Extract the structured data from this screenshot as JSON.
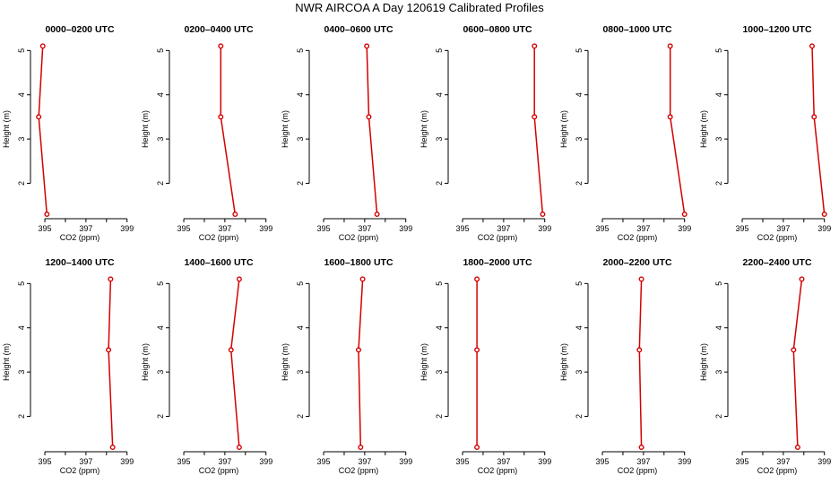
{
  "title": "NWR AIRCOA A  Day 120619  Calibrated Profiles",
  "chart_data": {
    "type": "line",
    "xlabel": "CO2 (ppm)",
    "ylabel": "Height (m)",
    "xlim": [
      394.3,
      399.1
    ],
    "ylim": [
      1.2,
      5.25
    ],
    "xticks": [
      395,
      396,
      397,
      398,
      399
    ],
    "xtick_labels": [
      "395",
      "",
      "397",
      "",
      "399"
    ],
    "yticks": [
      2,
      3,
      4,
      5
    ],
    "line_color": "#d40000",
    "grid": false,
    "panels": [
      {
        "title": "0000–0200 UTC",
        "x": [
          394.9,
          394.7,
          395.1
        ],
        "y": [
          5.1,
          3.5,
          1.3
        ]
      },
      {
        "title": "0200–0400 UTC",
        "x": [
          396.8,
          396.8,
          397.5
        ],
        "y": [
          5.1,
          3.5,
          1.3
        ]
      },
      {
        "title": "0400–0600 UTC",
        "x": [
          397.1,
          397.2,
          397.6
        ],
        "y": [
          5.1,
          3.5,
          1.3
        ]
      },
      {
        "title": "0600–0800 UTC",
        "x": [
          398.5,
          398.5,
          398.9
        ],
        "y": [
          5.1,
          3.5,
          1.3
        ]
      },
      {
        "title": "0800–1000 UTC",
        "x": [
          398.3,
          398.3,
          399.0
        ],
        "y": [
          5.1,
          3.5,
          1.3
        ]
      },
      {
        "title": "1000–1200 UTC",
        "x": [
          398.4,
          398.5,
          399.0
        ],
        "y": [
          5.1,
          3.5,
          1.3
        ]
      },
      {
        "title": "1200–1400 UTC",
        "x": [
          398.2,
          398.1,
          398.3
        ],
        "y": [
          5.1,
          3.5,
          1.3
        ]
      },
      {
        "title": "1400–1600 UTC",
        "x": [
          397.7,
          397.3,
          397.7
        ],
        "y": [
          5.1,
          3.5,
          1.3
        ]
      },
      {
        "title": "1600–1800 UTC",
        "x": [
          396.9,
          396.7,
          396.8
        ],
        "y": [
          5.1,
          3.5,
          1.3
        ]
      },
      {
        "title": "1800–2000 UTC",
        "x": [
          395.7,
          395.7,
          395.7
        ],
        "y": [
          5.1,
          3.5,
          1.3
        ]
      },
      {
        "title": "2000–2200 UTC",
        "x": [
          396.9,
          396.8,
          396.9
        ],
        "y": [
          5.1,
          3.5,
          1.3
        ]
      },
      {
        "title": "2200–2400 UTC",
        "x": [
          397.9,
          397.5,
          397.7
        ],
        "y": [
          5.1,
          3.5,
          1.3
        ]
      }
    ]
  }
}
